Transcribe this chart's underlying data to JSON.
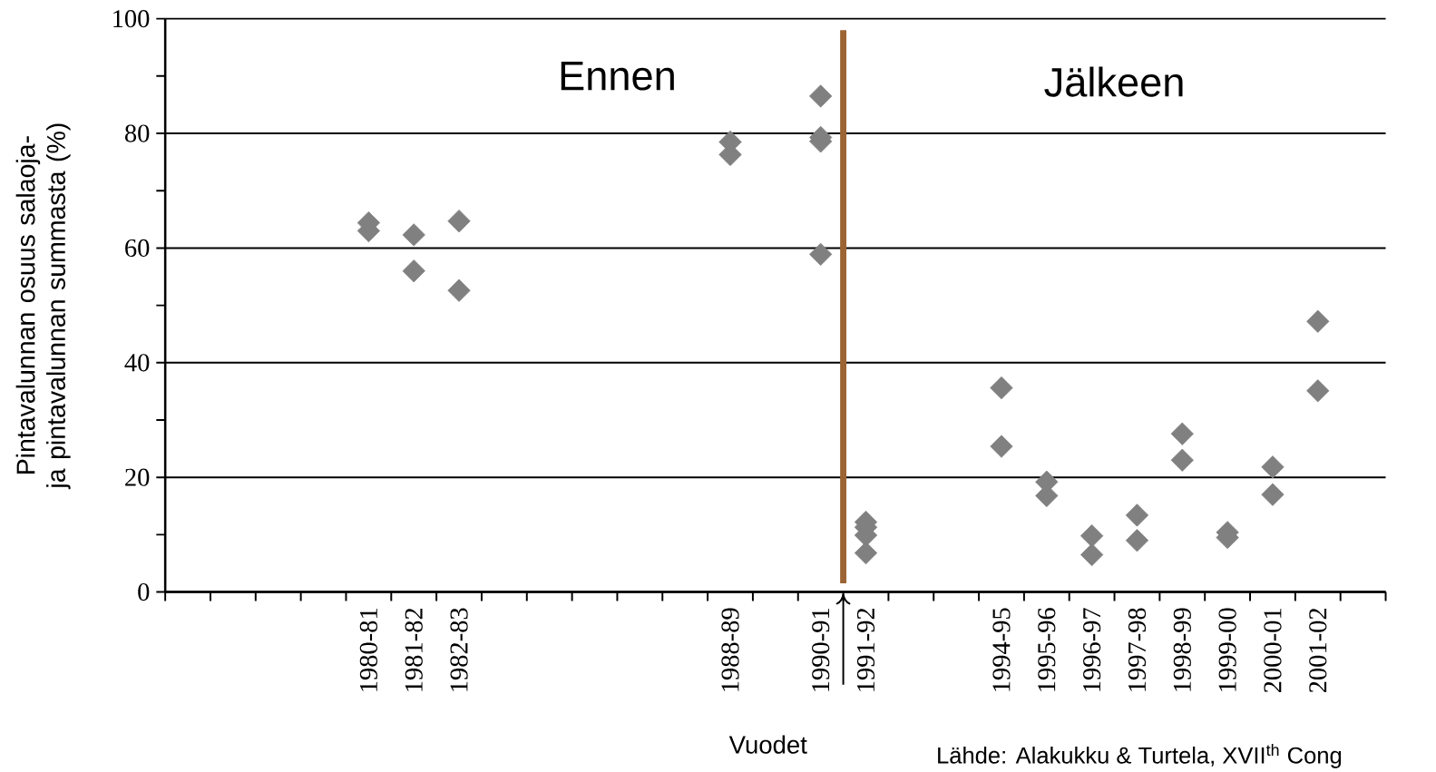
{
  "chart_data": {
    "type": "scatter",
    "ylabel": "Pintavalunnan osuus salaoja- ja pintavalunnan summasta (%)",
    "xlabel": "Vuodet",
    "annotations": [
      "Ennen",
      "Jälkeen",
      "Lähde: Alakukku & Turtela, XVII$^{th}$ Cong"
    ],
    "categories": [
      null,
      null,
      null,
      null,
      "1980-81",
      "1981-82",
      "1982-83",
      null,
      null,
      null,
      null,
      null,
      "1988-89",
      null,
      "1990-91",
      "1991-92",
      null,
      null,
      "1994-95",
      "1995-96",
      "1996-97",
      "1997-98",
      "1998-99",
      "1999-00",
      "2000-01",
      "2001-02",
      null
    ],
    "series": [
      {
        "color": "#808080",
        "values": [
          null,
          null,
          null,
          null,
          64.4,
          62.3,
          64.7,
          null,
          null,
          null,
          null,
          null,
          78.5,
          null,
          86.5,
          12.2,
          null,
          null,
          35.6,
          19.2,
          9.8,
          13.4,
          27.6,
          10.4,
          21.8,
          47.2,
          null
        ]
      },
      {
        "color": "#808080",
        "values": [
          null,
          null,
          null,
          null,
          63,
          56,
          52.6,
          null,
          null,
          null,
          null,
          null,
          76.3,
          null,
          79.3,
          11.3,
          null,
          null,
          25.4,
          16.8,
          6.5,
          9,
          23,
          9.5,
          17,
          35.1,
          null
        ]
      },
      {
        "color": "#808080",
        "values": [
          null,
          null,
          null,
          null,
          null,
          null,
          null,
          null,
          null,
          null,
          null,
          null,
          null,
          null,
          78.6,
          9.9,
          null,
          null,
          null,
          null,
          null,
          null,
          null,
          null,
          null,
          null,
          null
        ]
      },
      {
        "color": "#808080",
        "values": [
          null,
          null,
          null,
          null,
          null,
          null,
          null,
          null,
          null,
          null,
          null,
          null,
          null,
          null,
          58.9,
          6.8,
          null,
          null,
          null,
          null,
          null,
          null,
          null,
          null,
          null,
          null,
          null
        ]
      }
    ],
    "ylim": [
      0,
      100
    ],
    "yticks": [
      0,
      20,
      40,
      60,
      80,
      100
    ],
    "grid": "y",
    "marker": "diamond"
  }
}
